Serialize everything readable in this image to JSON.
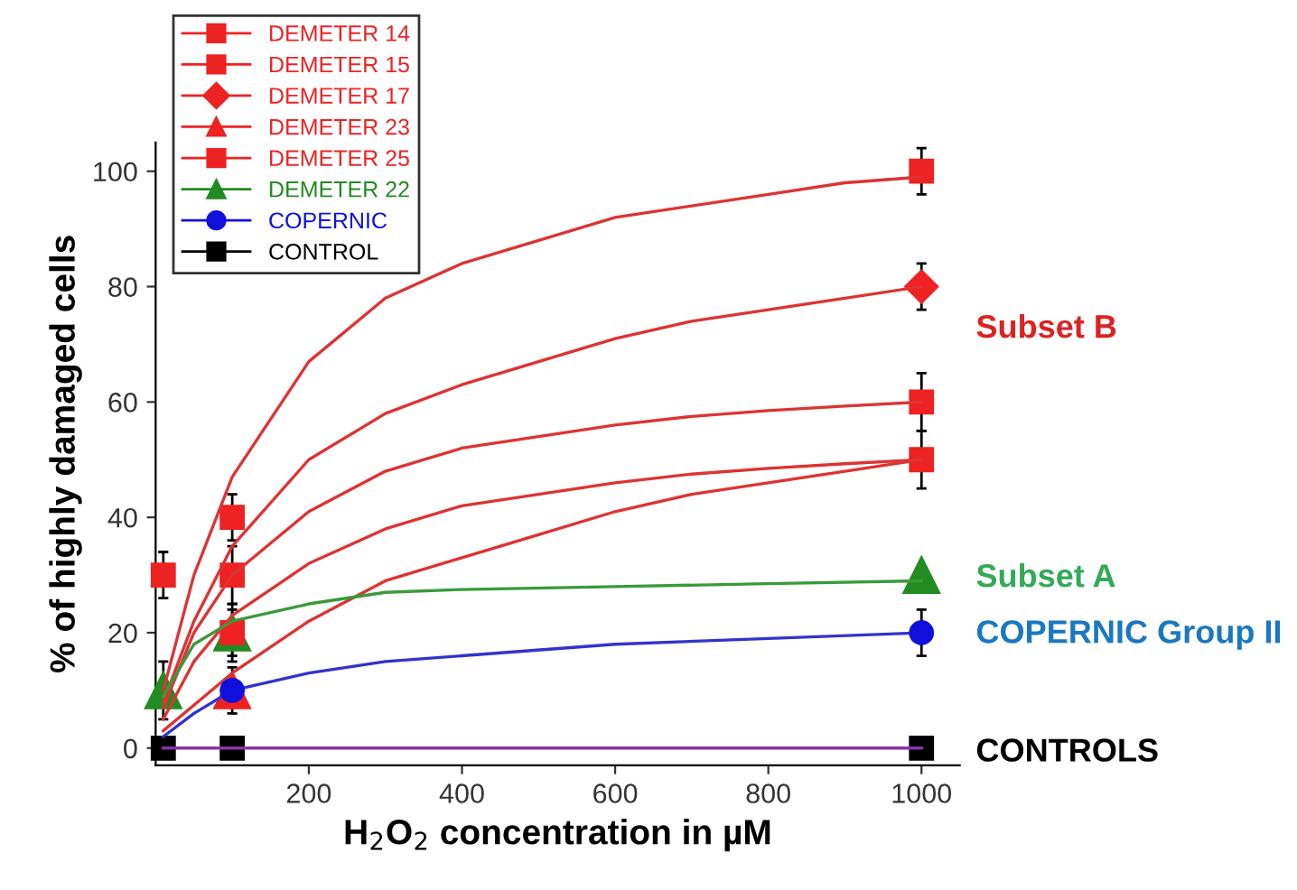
{
  "chart_data": {
    "type": "scatter",
    "xlabel": "H$_{2}$O$_{2}$ concentration in µM",
    "ylabel": "% of highly damaged cells",
    "xlim": [
      0,
      1050
    ],
    "ylim": [
      -3,
      105
    ],
    "xticks": [
      200,
      400,
      600,
      800,
      1000
    ],
    "yticks": [
      0,
      20,
      40,
      60,
      80,
      100
    ],
    "grid": false,
    "legend": "top left",
    "series": [
      {
        "name": "DEMETER 14",
        "color": "#ee2222",
        "marker": "square",
        "x": [
          100,
          1000
        ],
        "values": [
          20,
          50
        ],
        "errors": [
          4,
          5
        ]
      },
      {
        "name": "DEMETER 15",
        "color": "#ee2222",
        "marker": "square",
        "x": [
          100,
          1000
        ],
        "values": [
          30,
          60
        ],
        "errors": [
          5,
          5
        ]
      },
      {
        "name": "DEMETER 17",
        "color": "#ee2222",
        "marker": "diamond",
        "x": [
          1000
        ],
        "values": [
          80
        ],
        "errors": [
          4
        ]
      },
      {
        "name": "DEMETER 23",
        "color": "#ee2222",
        "marker": "triangle",
        "x": [
          100
        ],
        "values": [
          10
        ]
      },
      {
        "name": "DEMETER 25",
        "color": "#ee2222",
        "marker": "square",
        "x": [
          10,
          100,
          1000
        ],
        "values": [
          30,
          40,
          100
        ],
        "errors": [
          4,
          4,
          4
        ]
      },
      {
        "name": "DEMETER 22",
        "color": "#228b22",
        "marker": "triangle",
        "x": [
          10,
          100,
          1000
        ],
        "values": [
          10,
          20,
          30
        ],
        "errors": [
          5,
          5,
          null
        ]
      },
      {
        "name": "COPERNIC",
        "color": "#1010dd",
        "marker": "circle",
        "x": [
          100,
          1000
        ],
        "values": [
          10,
          20
        ],
        "errors": [
          4,
          4
        ]
      },
      {
        "name": "CONTROL",
        "color": "#000000",
        "marker": "square",
        "x": [
          10,
          100,
          1000
        ],
        "values": [
          0,
          0,
          0
        ]
      },
      {
        "type": "line",
        "color": "#dd3333",
        "x": [
          10,
          50,
          100,
          200,
          300,
          400,
          500,
          600,
          700,
          800,
          900,
          1000
        ],
        "values": [
          10,
          30,
          47,
          67,
          78,
          84,
          88,
          92,
          94,
          96,
          98,
          99
        ]
      },
      {
        "type": "line",
        "color": "#dd3333",
        "x": [
          10,
          50,
          100,
          200,
          300,
          400,
          500,
          600,
          700,
          800,
          900,
          1000
        ],
        "values": [
          8,
          22,
          35,
          50,
          58,
          63,
          67,
          71,
          74,
          76,
          78,
          80
        ]
      },
      {
        "type": "line",
        "color": "#dd3333",
        "x": [
          10,
          50,
          100,
          200,
          300,
          400,
          500,
          600,
          700,
          800,
          900,
          1000
        ],
        "values": [
          7,
          20,
          30,
          41,
          48,
          52,
          54,
          56,
          57.5,
          58.5,
          59.3,
          60
        ]
      },
      {
        "type": "line",
        "color": "#dd3333",
        "x": [
          10,
          50,
          100,
          200,
          300,
          400,
          500,
          600,
          700,
          800,
          900,
          1000
        ],
        "values": [
          5,
          15,
          23,
          32,
          38,
          42,
          44,
          46,
          47.5,
          48.5,
          49.3,
          50
        ]
      },
      {
        "type": "line",
        "color": "#dd3333",
        "x": [
          10,
          100,
          200,
          300,
          400,
          500,
          600,
          700,
          800,
          900,
          1000
        ],
        "values": [
          3,
          13,
          22,
          29,
          33,
          37,
          41,
          44,
          46,
          48,
          50
        ]
      },
      {
        "type": "line",
        "color": "#3a9a3a",
        "x": [
          10,
          50,
          100,
          200,
          300,
          400,
          600,
          800,
          1000
        ],
        "values": [
          9,
          18,
          22,
          25,
          27,
          27.5,
          28,
          28.5,
          29
        ]
      },
      {
        "type": "line",
        "color": "#3333cc",
        "x": [
          10,
          50,
          100,
          200,
          300,
          400,
          600,
          800,
          1000
        ],
        "values": [
          2,
          6,
          10,
          13,
          15,
          16,
          18,
          19,
          20
        ]
      },
      {
        "type": "line",
        "color": "#8833aa",
        "x": [
          10,
          1000
        ],
        "values": [
          0,
          0
        ]
      }
    ],
    "annotations": [
      "Subset B",
      "Subset A",
      "COPERNIC Group II",
      "CONTROLS"
    ]
  }
}
